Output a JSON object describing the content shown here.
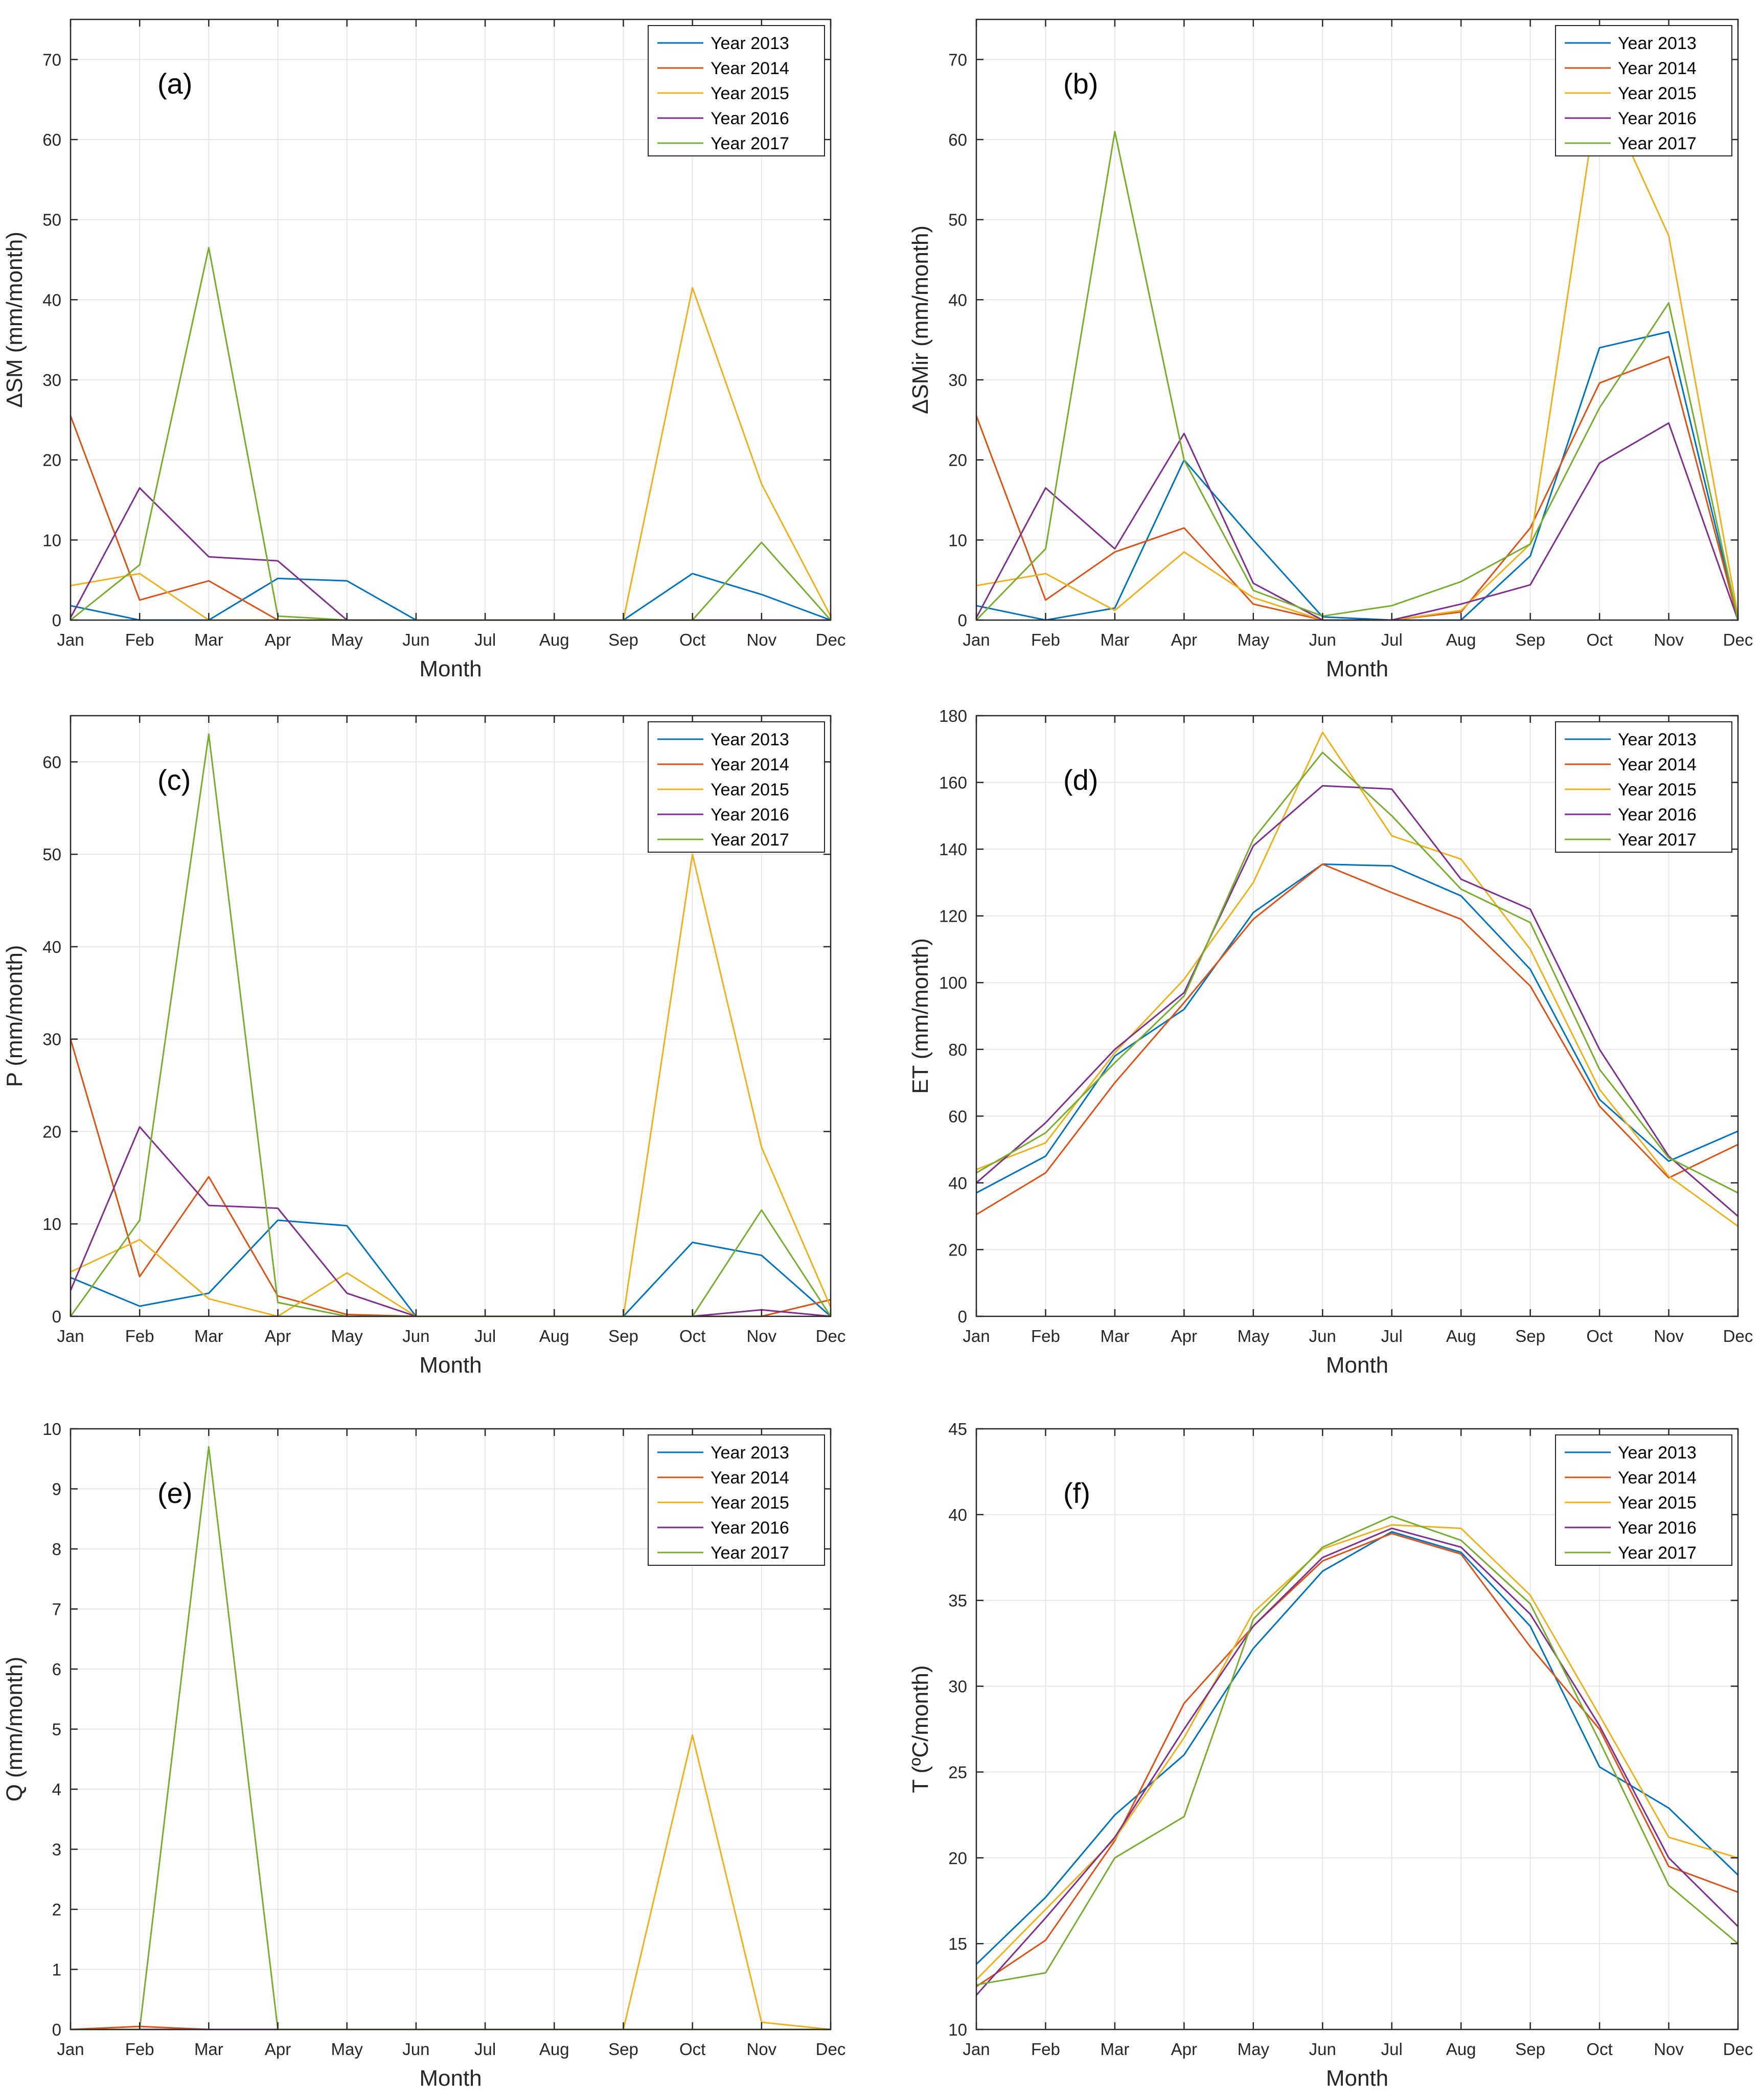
{
  "figure": {
    "colors": {
      "Year 2013": "#0072BD",
      "Year 2014": "#D95319",
      "Year 2015": "#EDB120",
      "Year 2016": "#7E2F8E",
      "Year 2017": "#77AC30"
    }
  },
  "chart_data": [
    {
      "type": "line",
      "panel": "(a)",
      "title": "",
      "xlabel": "Month",
      "ylabel": "ΔSM (mm/month)",
      "categories": [
        "Jan",
        "Feb",
        "Mar",
        "Apr",
        "May",
        "Jun",
        "Jul",
        "Aug",
        "Sep",
        "Oct",
        "Nov",
        "Dec"
      ],
      "ylim": [
        0,
        75
      ],
      "yticks": [
        0,
        10,
        20,
        30,
        40,
        50,
        60,
        70
      ],
      "grid": true,
      "legend": "top-right",
      "series": [
        {
          "name": "Year 2013",
          "values": [
            1.8,
            0,
            0,
            5.2,
            4.9,
            0,
            0,
            0,
            0,
            5.8,
            3.2,
            0
          ]
        },
        {
          "name": "Year 2014",
          "values": [
            25.5,
            2.5,
            4.9,
            0,
            0,
            0,
            0,
            0,
            0,
            0,
            0,
            0
          ]
        },
        {
          "name": "Year 2015",
          "values": [
            4.3,
            5.8,
            0,
            0,
            0,
            0,
            0,
            0,
            0,
            41.5,
            17,
            0.5
          ]
        },
        {
          "name": "Year 2016",
          "values": [
            0.3,
            16.5,
            7.9,
            7.4,
            0,
            0,
            0,
            0,
            0,
            0,
            0,
            0
          ]
        },
        {
          "name": "Year 2017",
          "values": [
            0,
            6.9,
            46.5,
            0.5,
            0,
            0,
            0,
            0,
            0,
            0,
            9.7,
            0
          ]
        }
      ]
    },
    {
      "type": "line",
      "panel": "(b)",
      "title": "",
      "xlabel": "Month",
      "ylabel": "ΔSMir (mm/month)",
      "categories": [
        "Jan",
        "Feb",
        "Mar",
        "Apr",
        "May",
        "Jun",
        "Jul",
        "Aug",
        "Sep",
        "Oct",
        "Nov",
        "Dec"
      ],
      "ylim": [
        0,
        75
      ],
      "yticks": [
        0,
        10,
        20,
        30,
        40,
        50,
        60,
        70
      ],
      "grid": true,
      "legend": "top-right",
      "series": [
        {
          "name": "Year 2013",
          "values": [
            1.8,
            0,
            1.5,
            20,
            10,
            0.4,
            0,
            0,
            8,
            34,
            36,
            0
          ]
        },
        {
          "name": "Year 2014",
          "values": [
            25.5,
            2.5,
            8.5,
            11.5,
            2,
            0,
            0,
            1,
            11.5,
            29.6,
            32.9,
            0
          ]
        },
        {
          "name": "Year 2015",
          "values": [
            4.3,
            5.8,
            1.2,
            8.5,
            2.8,
            0,
            0,
            1.2,
            9.5,
            67,
            48,
            0.5
          ]
        },
        {
          "name": "Year 2016",
          "values": [
            0.3,
            16.5,
            8.9,
            23.3,
            4.6,
            0,
            0,
            2,
            4.4,
            19.6,
            24.6,
            0
          ]
        },
        {
          "name": "Year 2017",
          "values": [
            0,
            8.9,
            61,
            20,
            3.7,
            0.5,
            1.8,
            4.8,
            9.5,
            26.5,
            39.6,
            0
          ]
        }
      ]
    },
    {
      "type": "line",
      "panel": "(c)",
      "title": "",
      "xlabel": "Month",
      "ylabel": "P (mm/month)",
      "categories": [
        "Jan",
        "Feb",
        "Mar",
        "Apr",
        "May",
        "Jun",
        "Jul",
        "Aug",
        "Sep",
        "Oct",
        "Nov",
        "Dec"
      ],
      "ylim": [
        0,
        65
      ],
      "yticks": [
        0,
        10,
        20,
        30,
        40,
        50,
        60
      ],
      "grid": true,
      "legend": "top-right",
      "series": [
        {
          "name": "Year 2013",
          "values": [
            4.2,
            1.1,
            2.5,
            10.4,
            9.8,
            0,
            0,
            0,
            0,
            8,
            6.6,
            0
          ]
        },
        {
          "name": "Year 2014",
          "values": [
            30,
            4.3,
            15.1,
            2.2,
            0.2,
            0,
            0,
            0,
            0,
            0,
            0,
            1.8
          ]
        },
        {
          "name": "Year 2015",
          "values": [
            4.8,
            8.3,
            1.9,
            0,
            4.7,
            0,
            0,
            0,
            0,
            50,
            18.3,
            1
          ]
        },
        {
          "name": "Year 2016",
          "values": [
            2.8,
            20.5,
            12,
            11.7,
            2.5,
            0,
            0,
            0,
            0,
            0,
            0.7,
            0
          ]
        },
        {
          "name": "Year 2017",
          "values": [
            0,
            10.4,
            63,
            1.5,
            0,
            0,
            0,
            0,
            0,
            0,
            11.5,
            0
          ]
        }
      ]
    },
    {
      "type": "line",
      "panel": "(d)",
      "title": "",
      "xlabel": "Month",
      "ylabel": "ET (mm/month)",
      "categories": [
        "Jan",
        "Feb",
        "Mar",
        "Apr",
        "May",
        "Jun",
        "Jul",
        "Aug",
        "Sep",
        "Oct",
        "Nov",
        "Dec"
      ],
      "ylim": [
        0,
        180
      ],
      "yticks": [
        0,
        20,
        40,
        60,
        80,
        100,
        120,
        140,
        160,
        180
      ],
      "grid": true,
      "legend": "top-right",
      "series": [
        {
          "name": "Year 2013",
          "values": [
            37,
            48,
            78,
            92,
            121,
            135.5,
            135,
            126,
            104,
            65,
            46.5,
            55.5
          ]
        },
        {
          "name": "Year 2014",
          "values": [
            30.5,
            43,
            70,
            94,
            119,
            135.5,
            127,
            119,
            99,
            63,
            41.5,
            51.5
          ]
        },
        {
          "name": "Year 2015",
          "values": [
            44,
            52,
            79,
            101,
            130,
            175,
            144,
            137,
            110,
            68,
            42,
            27
          ]
        },
        {
          "name": "Year 2016",
          "values": [
            40,
            58,
            80,
            97,
            141,
            159,
            158,
            131,
            122,
            80,
            48,
            30
          ]
        },
        {
          "name": "Year 2017",
          "values": [
            43,
            55,
            76,
            96,
            143,
            169,
            150,
            128,
            118,
            74,
            47.5,
            37
          ]
        }
      ]
    },
    {
      "type": "line",
      "panel": "(e)",
      "title": "",
      "xlabel": "Month",
      "ylabel": "Q (mm/month)",
      "categories": [
        "Jan",
        "Feb",
        "Mar",
        "Apr",
        "May",
        "Jun",
        "Jul",
        "Aug",
        "Sep",
        "Oct",
        "Nov",
        "Dec"
      ],
      "ylim": [
        0,
        10
      ],
      "yticks": [
        0,
        1,
        2,
        3,
        4,
        5,
        6,
        7,
        8,
        9,
        10
      ],
      "grid": true,
      "legend": "top-right",
      "series": [
        {
          "name": "Year 2013",
          "values": [
            0,
            0,
            0,
            0,
            0,
            0,
            0,
            0,
            0,
            0,
            0,
            0
          ]
        },
        {
          "name": "Year 2014",
          "values": [
            0,
            0.05,
            0,
            0,
            0,
            0,
            0,
            0,
            0,
            0,
            0,
            0
          ]
        },
        {
          "name": "Year 2015",
          "values": [
            0,
            0,
            0,
            0,
            0,
            0,
            0,
            0,
            0,
            4.9,
            0.12,
            0
          ]
        },
        {
          "name": "Year 2016",
          "values": [
            0,
            0,
            0,
            0,
            0,
            0,
            0,
            0,
            0,
            0,
            0,
            0
          ]
        },
        {
          "name": "Year 2017",
          "values": [
            0,
            0,
            9.7,
            0,
            0,
            0,
            0,
            0,
            0,
            0,
            0,
            0
          ]
        }
      ]
    },
    {
      "type": "line",
      "panel": "(f)",
      "title": "",
      "xlabel": "Month",
      "ylabel": "T (ºC/month)",
      "categories": [
        "Jan",
        "Feb",
        "Mar",
        "Apr",
        "May",
        "Jun",
        "Jul",
        "Aug",
        "Sep",
        "Oct",
        "Nov",
        "Dec"
      ],
      "ylim": [
        10,
        45
      ],
      "yticks": [
        10,
        15,
        20,
        25,
        30,
        35,
        40,
        45
      ],
      "grid": true,
      "legend": "top-right",
      "series": [
        {
          "name": "Year 2013",
          "values": [
            13.8,
            17.7,
            22.5,
            26,
            32.2,
            36.7,
            39,
            37.8,
            33.5,
            25.3,
            22.9,
            19
          ]
        },
        {
          "name": "Year 2014",
          "values": [
            12.5,
            15.2,
            21,
            29,
            33.5,
            37.3,
            38.9,
            37.7,
            32.3,
            27.5,
            19.5,
            18
          ]
        },
        {
          "name": "Year 2015",
          "values": [
            12.9,
            17,
            21.1,
            27,
            34.3,
            38,
            39.4,
            39.2,
            35.3,
            28.3,
            21.2,
            20
          ]
        },
        {
          "name": "Year 2016",
          "values": [
            12,
            16.5,
            21.2,
            27.5,
            33.5,
            37.5,
            39.2,
            38.1,
            34.2,
            27.7,
            20,
            16
          ]
        },
        {
          "name": "Year 2017",
          "values": [
            12.6,
            13.3,
            20,
            22.4,
            33.9,
            38.1,
            39.9,
            38.5,
            34.8,
            26.8,
            18.4,
            15
          ]
        }
      ]
    }
  ]
}
